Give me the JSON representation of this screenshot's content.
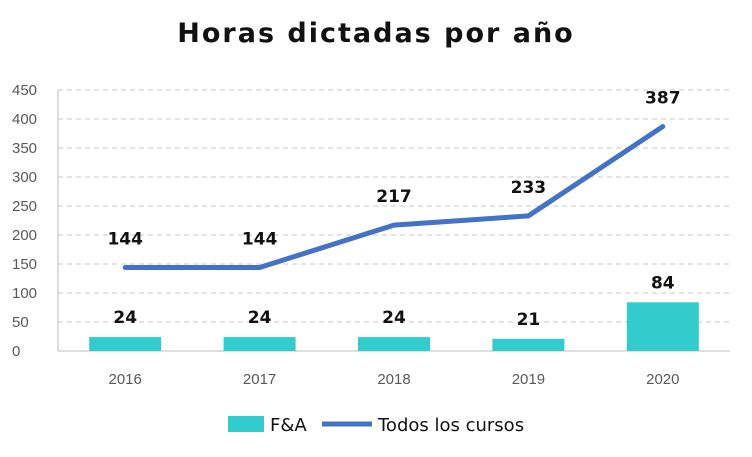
{
  "colors": {
    "bars": "#33CCCC",
    "line": "#4472C4",
    "grid": "#C8C8C8",
    "axis": "#BFBFBF"
  },
  "chart_data": {
    "type": "bar+line",
    "title": "Horas dictadas por año",
    "categories": [
      "2016",
      "2017",
      "2018",
      "2019",
      "2020"
    ],
    "series": [
      {
        "name": "F&A",
        "type": "bar",
        "values": [
          24,
          24,
          24,
          21,
          84
        ]
      },
      {
        "name": "Todos los cursos",
        "type": "line",
        "values": [
          144,
          144,
          217,
          233,
          387
        ]
      }
    ],
    "y_ticks": [
      0,
      50,
      100,
      150,
      200,
      250,
      300,
      350,
      400,
      450
    ],
    "ylim": [
      0,
      450
    ],
    "xlabel": "",
    "ylabel": "",
    "grid": "horizontal dashed",
    "legend_position": "bottom"
  }
}
